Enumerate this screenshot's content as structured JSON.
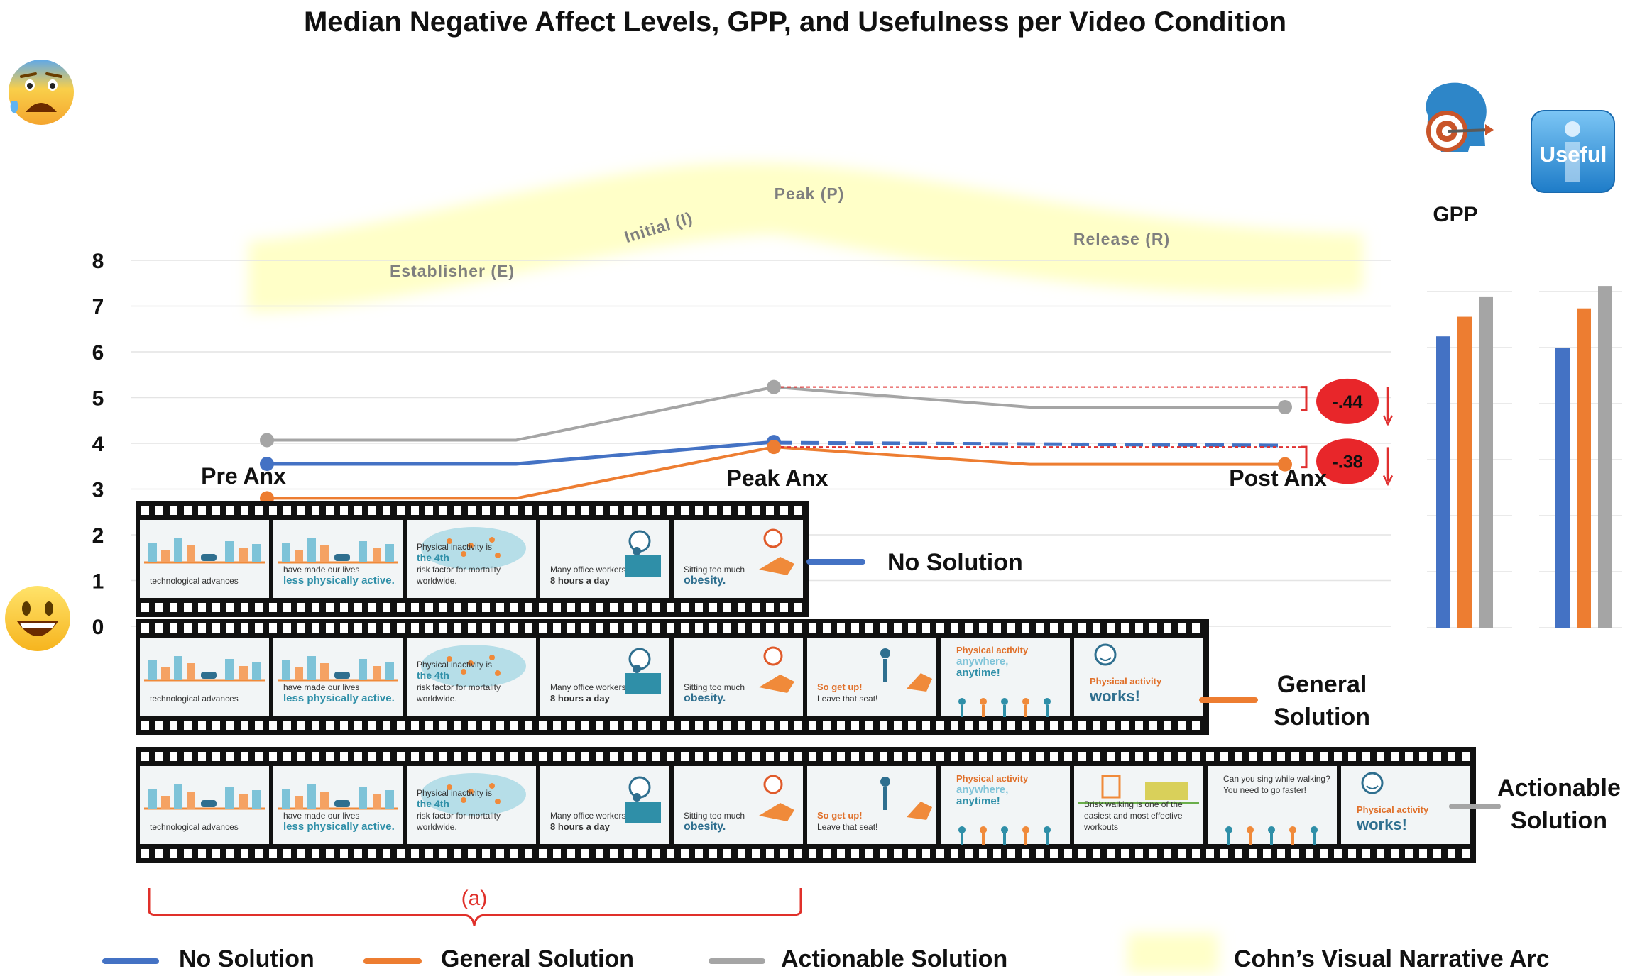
{
  "chart_data": {
    "type": "line",
    "title": "Median Negative Affect Levels, GPP, and Usefulness per Video Condition",
    "ylim": [
      0,
      8
    ],
    "yticks": [
      "0",
      "1",
      "2",
      "3",
      "4",
      "5",
      "6",
      "7",
      "8"
    ],
    "timepoints": [
      "Pre Anx",
      "Peak Anx",
      "Post Anx"
    ],
    "series": [
      {
        "name": "No Solution",
        "color": "#4472C4",
        "pre": 3.55,
        "peak": 4.03,
        "post": 4.0,
        "post_dashed": true
      },
      {
        "name": "General  Solution",
        "color": "#ED7D31",
        "pre": 2.8,
        "peak": 3.92,
        "post": 3.54
      },
      {
        "name": "Actionable Solution",
        "color": "#A5A5A5",
        "pre": 4.07,
        "peak": 5.23,
        "post": 4.79
      }
    ],
    "differences": [
      {
        "label": "-.44",
        "series": "Actionable Solution"
      },
      {
        "label": "-.38",
        "series": "General  Solution"
      }
    ],
    "arc": {
      "phases": [
        "Establisher (E)",
        "Initial (I)",
        "Peak (P)",
        "Release (R)"
      ],
      "color": "#FFFFC8",
      "legend_label": "Cohn’s Visual Narrative Arc"
    },
    "gpp": {
      "label": "GPP",
      "values": [
        {
          "series": "No Solution",
          "value": 5.2
        },
        {
          "series": "General  Solution",
          "value": 5.55
        },
        {
          "series": "Actionable Solution",
          "value": 5.9
        }
      ]
    },
    "usefulness": {
      "icon_text": "Useful",
      "values": [
        {
          "series": "No Solution",
          "value": 5.0
        },
        {
          "series": "General  Solution",
          "value": 5.7
        },
        {
          "series": "Actionable Solution",
          "value": 6.1
        }
      ]
    },
    "film_label": "(a)",
    "film_strips": [
      {
        "label_lines": [
          "No Solution"
        ],
        "frames": [
          {
            "lines": [
              "technological advances"
            ],
            "icon": "city-bars"
          },
          {
            "lines": [
              "have made our lives",
              "less physically active."
            ],
            "icon": "city-bars"
          },
          {
            "lines": [
              "Physical inactivity is",
              "the 4th",
              "risk factor for mortality",
              "worldwide."
            ],
            "icon": "world-map"
          },
          {
            "lines": [
              "Many office workers",
              "8 hours a day"
            ],
            "icon": "desk-worker"
          },
          {
            "lines": [
              "Sitting too much",
              "obesity."
            ],
            "icon": "chair-worker"
          }
        ]
      },
      {
        "label_lines": [
          "General",
          "Solution"
        ],
        "frames": [
          {
            "lines": [
              "technological advances"
            ],
            "icon": "city-bars"
          },
          {
            "lines": [
              "have made our lives",
              "less physically active."
            ],
            "icon": "city-bars"
          },
          {
            "lines": [
              "Physical inactivity is",
              "the 4th",
              "risk factor for mortality",
              "worldwide."
            ],
            "icon": "world-map"
          },
          {
            "lines": [
              "Many office workers",
              "8 hours a day"
            ],
            "icon": "desk-worker"
          },
          {
            "lines": [
              "Sitting too much",
              "obesity."
            ],
            "icon": "chair-worker"
          },
          {
            "lines": [
              "So get up!",
              "Leave that seat!"
            ],
            "icon": "standing-person"
          },
          {
            "lines": [
              "Physical activity",
              "anywhere,",
              "anytime!"
            ],
            "icon": "walking-people"
          },
          {
            "lines": [
              "Physical activity",
              "works!"
            ],
            "icon": "smiley"
          }
        ]
      },
      {
        "label_lines": [
          "Actionable",
          "Solution"
        ],
        "frames": [
          {
            "lines": [
              "technological advances"
            ],
            "icon": "city-bars"
          },
          {
            "lines": [
              "have made our lives",
              "less physically active."
            ],
            "icon": "city-bars"
          },
          {
            "lines": [
              "Physical inactivity is",
              "the 4th",
              "risk factor for mortality",
              "worldwide."
            ],
            "icon": "world-map"
          },
          {
            "lines": [
              "Many office workers",
              "8 hours a day"
            ],
            "icon": "desk-worker"
          },
          {
            "lines": [
              "Sitting too much",
              "obesity."
            ],
            "icon": "chair-worker"
          },
          {
            "lines": [
              "So get up!",
              "Leave that seat!"
            ],
            "icon": "standing-person"
          },
          {
            "lines": [
              "Physical activity",
              "anywhere,",
              "anytime!"
            ],
            "icon": "walking-people"
          },
          {
            "lines": [
              "Brisk walking is one of the",
              "easiest and most effective",
              "workouts"
            ],
            "icon": "walking-scene"
          },
          {
            "lines": [
              "Can you sing while walking?",
              "You need to go faster!"
            ],
            "icon": "walking-people"
          },
          {
            "lines": [
              "Physical activity",
              "works!"
            ],
            "icon": "smiley"
          }
        ]
      }
    ],
    "legend": [
      {
        "label": "No Solution",
        "color": "#4472C4"
      },
      {
        "label": "General  Solution",
        "color": "#ED7D31"
      },
      {
        "label": "Actionable Solution",
        "color": "#A5A5A5"
      },
      {
        "label": "Cohn’s Visual Narrative Arc",
        "color": "#FFFFC8"
      }
    ],
    "emoji": {
      "top": "anxious-face-emoji",
      "bottom": "grinning-face-emoji"
    }
  }
}
